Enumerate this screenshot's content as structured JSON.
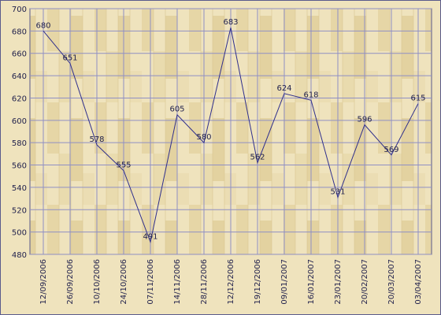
{
  "chart_data": {
    "type": "line",
    "title": "",
    "xlabel": "",
    "ylabel": "",
    "ylim": [
      480,
      700
    ],
    "y_ticks": [
      480,
      500,
      520,
      540,
      560,
      580,
      600,
      620,
      640,
      660,
      680,
      700
    ],
    "grid": true,
    "legend": "none",
    "categories": [
      "12/09/2006",
      "26/09/2006",
      "10/10/2006",
      "24/10/2006",
      "07/11/2006",
      "14/11/2006",
      "28/11/2006",
      "12/12/2006",
      "19/12/2006",
      "09/01/2007",
      "16/01/2007",
      "23/01/2007",
      "20/02/2007",
      "20/03/2007",
      "03/04/2007"
    ],
    "series": [
      {
        "values": [
          680,
          651,
          578,
          555,
          491,
          605,
          580,
          683,
          562,
          624,
          618,
          531,
          596,
          569,
          615
        ],
        "color": "#2e2e8c"
      }
    ],
    "colors": {
      "background": "#efe3bd",
      "grid": "#8f8fc4",
      "text": "#22224d",
      "frame": "#5a5a8c"
    }
  }
}
